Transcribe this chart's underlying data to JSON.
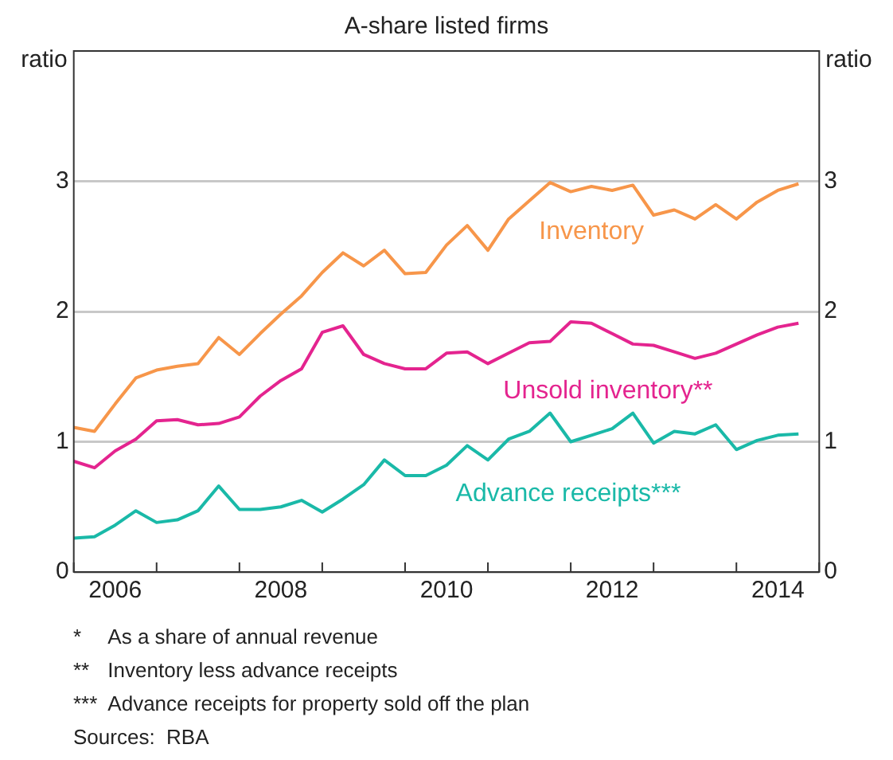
{
  "chart_data": {
    "type": "line",
    "title": "A-share listed firms",
    "ylabel": "ratio",
    "y2label": "ratio",
    "x": [
      2006,
      2006.25,
      2006.5,
      2006.75,
      2007,
      2007.25,
      2007.5,
      2007.75,
      2008,
      2008.25,
      2008.5,
      2008.75,
      2009,
      2009.25,
      2009.5,
      2009.75,
      2010,
      2010.25,
      2010.5,
      2010.75,
      2011,
      2011.25,
      2011.5,
      2011.75,
      2012,
      2012.25,
      2012.5,
      2012.75,
      2013,
      2013.25,
      2013.5,
      2013.75,
      2014,
      2014.25,
      2014.5,
      2014.75
    ],
    "series": [
      {
        "name": "Inventory",
        "color": "#f7964a",
        "values": [
          1.11,
          1.08,
          1.29,
          1.49,
          1.55,
          1.58,
          1.6,
          1.8,
          1.67,
          1.83,
          1.98,
          2.12,
          2.3,
          2.45,
          2.35,
          2.47,
          2.29,
          2.3,
          2.51,
          2.66,
          2.47,
          2.71,
          2.85,
          2.99,
          2.92,
          2.96,
          2.93,
          2.97,
          2.74,
          2.78,
          2.71,
          2.82,
          2.71,
          2.84,
          2.93,
          2.98
        ]
      },
      {
        "name": "Unsold inventory**",
        "color": "#e4248f",
        "values": [
          0.85,
          0.8,
          0.93,
          1.02,
          1.16,
          1.17,
          1.13,
          1.14,
          1.19,
          1.35,
          1.47,
          1.56,
          1.84,
          1.89,
          1.67,
          1.6,
          1.56,
          1.56,
          1.68,
          1.69,
          1.6,
          1.68,
          1.76,
          1.77,
          1.92,
          1.91,
          1.83,
          1.75,
          1.74,
          1.69,
          1.64,
          1.68,
          1.75,
          1.82,
          1.88,
          1.91
        ]
      },
      {
        "name": "Advance receipts***",
        "color": "#1ab9a8",
        "values": [
          0.26,
          0.27,
          0.36,
          0.47,
          0.38,
          0.4,
          0.47,
          0.66,
          0.48,
          0.48,
          0.5,
          0.55,
          0.46,
          0.56,
          0.67,
          0.86,
          0.74,
          0.74,
          0.82,
          0.97,
          0.86,
          1.02,
          1.08,
          1.22,
          1.0,
          1.05,
          1.1,
          1.22,
          0.99,
          1.08,
          1.06,
          1.13,
          0.94,
          1.01,
          1.05,
          1.06
        ]
      }
    ],
    "xlim": [
      2006,
      2015
    ],
    "xticks": [
      {
        "value": 2006,
        "label": null
      },
      {
        "value": 2006.5,
        "label": "2006"
      },
      {
        "value": 2007,
        "label": null
      },
      {
        "value": 2008,
        "label": null
      },
      {
        "value": 2008.5,
        "label": "2008"
      },
      {
        "value": 2009,
        "label": null
      },
      {
        "value": 2010,
        "label": null
      },
      {
        "value": 2010.5,
        "label": "2010"
      },
      {
        "value": 2011,
        "label": null
      },
      {
        "value": 2012,
        "label": null
      },
      {
        "value": 2012.5,
        "label": "2012"
      },
      {
        "value": 2013,
        "label": null
      },
      {
        "value": 2014,
        "label": null
      },
      {
        "value": 2014.5,
        "label": "2014"
      },
      {
        "value": 2015,
        "label": null
      }
    ],
    "ylim": [
      0,
      4
    ],
    "yticks": [
      0,
      1,
      2,
      3
    ],
    "y2lim": [
      0,
      4
    ],
    "y2ticks": [
      0,
      1,
      2,
      3
    ],
    "grid": "y",
    "legend": false,
    "marker": "none",
    "line_style": "solid",
    "annotations": [
      "*\tAs a share of annual revenue",
      "**\tInventory less advance receipts",
      "***\tAdvance receipts for property sold off the plan",
      "Sources:  RBA"
    ]
  }
}
